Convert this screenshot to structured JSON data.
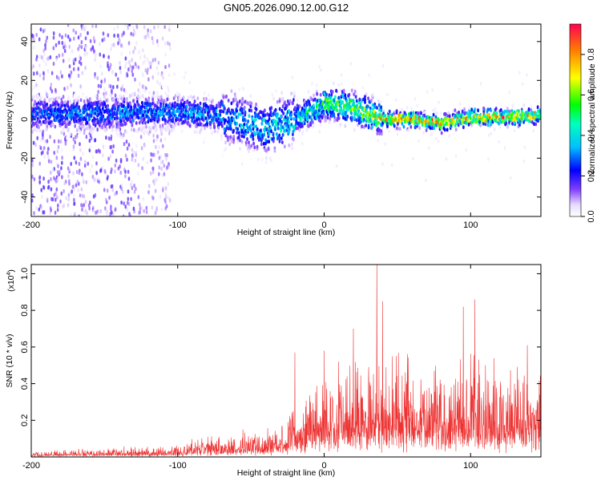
{
  "chart_data": [
    {
      "type": "heatmap",
      "title": "GN05.2026.090.12.00.G12",
      "xlabel": "Height of straight line (km)",
      "ylabel": "Frequency (Hz)",
      "xlim": [
        -200,
        148
      ],
      "ylim": [
        -50,
        49
      ],
      "xticks": [
        "-200",
        "-100",
        "0",
        "100"
      ],
      "xtick_values": [
        -200,
        -100,
        0,
        100
      ],
      "yticks": [
        "40",
        "20",
        "0",
        "-20",
        "-40"
      ],
      "ytick_values": [
        40,
        20,
        0,
        -20,
        -40
      ],
      "colorbar": {
        "label": "Normalized spectral amplitude",
        "range": [
          0,
          0.95
        ],
        "ticks": [
          "0.0",
          "0.2",
          "0.4",
          "0.6",
          "0.8"
        ],
        "tick_values": [
          0.0,
          0.2,
          0.4,
          0.6,
          0.8
        ]
      },
      "trace": {
        "description_height_km": [
          -200,
          -150,
          -100,
          -60,
          -40,
          -20,
          0,
          20,
          40,
          60,
          80,
          100,
          120,
          148
        ],
        "center_freq_hz": [
          3,
          3,
          4,
          0,
          -5,
          0,
          8,
          6,
          0,
          0,
          -2,
          1,
          1,
          2
        ],
        "peak_amplitude": [
          0.35,
          0.4,
          0.4,
          0.45,
          0.5,
          0.5,
          0.65,
          0.7,
          0.9,
          0.95,
          0.9,
          0.95,
          0.95,
          0.9
        ],
        "noise_scatter_until_km": -110
      }
    },
    {
      "type": "line",
      "xlabel": "Height of straight line (km)",
      "ylabel": "SNR (10 * v/v)",
      "y_multiplier": "(x10",
      "y_multiplier_exp": "4",
      "y_multiplier_close": ")",
      "xlim": [
        -200,
        148
      ],
      "ylim": [
        0,
        1.05
      ],
      "xticks": [
        "-200",
        "-100",
        "0",
        "100"
      ],
      "xtick_values": [
        -200,
        -100,
        0,
        100
      ],
      "yticks": [
        "1.0",
        "0.8",
        "0.6",
        "0.4",
        "0.2"
      ],
      "ytick_values": [
        1.0,
        0.8,
        0.6,
        0.4,
        0.2
      ],
      "series": [
        {
          "name": "SNR",
          "color": "#ee3333",
          "envelope_x": [
            -200,
            -150,
            -100,
            -90,
            -60,
            -30,
            -20,
            0,
            20,
            40,
            60,
            80,
            100,
            120,
            148
          ],
          "envelope_y": [
            0.02,
            0.03,
            0.04,
            0.07,
            0.08,
            0.12,
            0.2,
            0.3,
            0.35,
            0.4,
            0.38,
            0.32,
            0.35,
            0.33,
            0.35
          ],
          "spikes": [
            [
              -20,
              0.57
            ],
            [
              0,
              0.58
            ],
            [
              20,
              0.7
            ],
            [
              36,
              1.05
            ],
            [
              40,
              0.85
            ],
            [
              95,
              0.82
            ],
            [
              103,
              0.86
            ]
          ]
        }
      ]
    }
  ],
  "colors": {
    "line": "#ee3333",
    "axis": "#000000",
    "background": "#ffffff"
  }
}
